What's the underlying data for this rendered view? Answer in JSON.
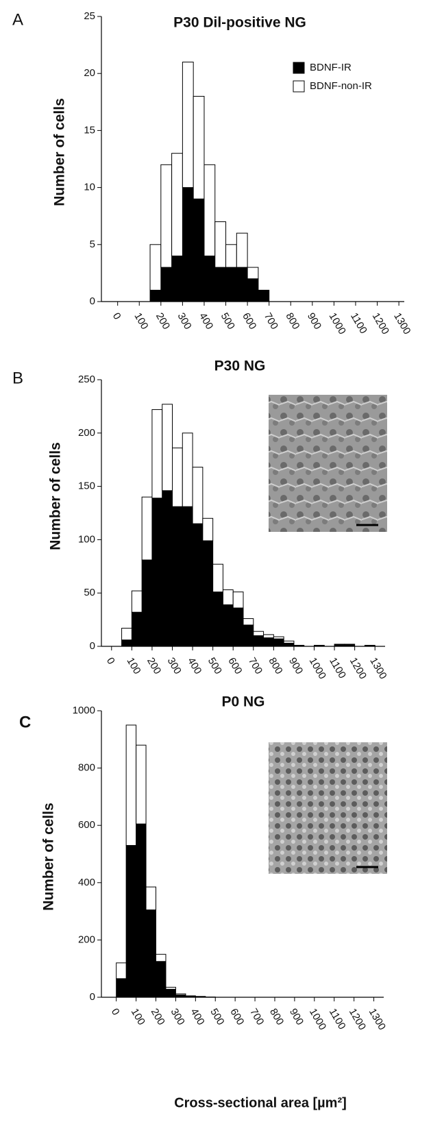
{
  "chart_data": [
    {
      "type": "histogram",
      "panel": "A",
      "title": "P30 Dil-positive NG",
      "y_label": "Number of cells",
      "bins": [
        150,
        200,
        250,
        300,
        350,
        400,
        450,
        500,
        550,
        600,
        650,
        700
      ],
      "series": [
        {
          "name": "BDNF-IR",
          "color": "#000000",
          "values": [
            1,
            3,
            4,
            10,
            9,
            4,
            3,
            3,
            3,
            2,
            1
          ]
        },
        {
          "name": "BDNF-non-IR",
          "color": "#ffffff",
          "values": [
            4,
            9,
            9,
            11,
            9,
            8,
            4,
            2,
            3,
            1,
            0
          ]
        }
      ],
      "stacked": true,
      "legend": "upper right",
      "xlim": [
        -75,
        1325
      ],
      "xticks": [
        0,
        100,
        200,
        300,
        400,
        500,
        600,
        700,
        800,
        900,
        1000,
        1100,
        1200,
        1300
      ],
      "ylim": [
        0,
        25
      ],
      "yticks": [
        0,
        5,
        10,
        15,
        20,
        25
      ]
    },
    {
      "type": "histogram",
      "panel": "B",
      "title": "P30 NG",
      "y_label": "Number of cells",
      "bins": [
        50,
        100,
        150,
        200,
        250,
        300,
        350,
        400,
        450,
        500,
        550,
        600,
        650,
        700,
        750,
        800,
        850,
        900,
        950,
        1000,
        1050,
        1100,
        1150,
        1200,
        1250,
        1300
      ],
      "series": [
        {
          "color": "#000000",
          "values": [
            6,
            32,
            81,
            139,
            146,
            131,
            131,
            115,
            99,
            51,
            39,
            36,
            20,
            10,
            8,
            7,
            3,
            1,
            0,
            1,
            0,
            2,
            2,
            0,
            1
          ]
        },
        {
          "color": "#ffffff",
          "values": [
            11,
            20,
            59,
            83,
            81,
            55,
            69,
            53,
            21,
            26,
            14,
            15,
            6,
            4,
            3,
            2,
            2,
            0,
            0,
            0,
            0,
            0,
            0,
            0,
            0
          ]
        }
      ],
      "stacked": true,
      "xlim": [
        -50,
        1350
      ],
      "xticks": [
        0,
        100,
        200,
        300,
        400,
        500,
        600,
        700,
        800,
        900,
        1000,
        1100,
        1200,
        1300
      ],
      "ylim": [
        0,
        250
      ],
      "yticks": [
        0,
        50,
        100,
        150,
        200,
        250
      ]
    },
    {
      "type": "histogram",
      "panel": "C",
      "title": "P0 NG",
      "y_label": "Number of  cells",
      "x_label": "Cross-sectional area [µm²]",
      "bins": [
        0,
        50,
        100,
        150,
        200,
        250,
        300,
        350,
        400,
        450,
        500
      ],
      "series": [
        {
          "color": "#000000",
          "values": [
            65,
            530,
            605,
            305,
            125,
            28,
            8,
            3,
            2,
            1
          ]
        },
        {
          "color": "#ffffff",
          "values": [
            55,
            420,
            275,
            80,
            25,
            7,
            4,
            2,
            1,
            0
          ]
        }
      ],
      "stacked": true,
      "xlim": [
        -75,
        1350
      ],
      "xticks": [
        0,
        100,
        200,
        300,
        400,
        500,
        600,
        700,
        800,
        900,
        1000,
        1100,
        1200,
        1300
      ],
      "ylim": [
        0,
        1000
      ],
      "yticks": [
        0,
        200,
        400,
        600,
        800,
        1000
      ]
    }
  ]
}
